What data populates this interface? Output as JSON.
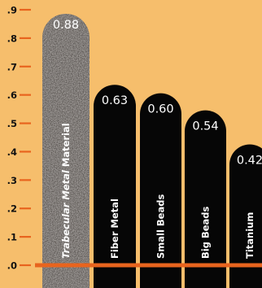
{
  "chart_data": {
    "type": "bar",
    "categories": [
      {
        "italic": "Trabecular Metal",
        "rest": " Material"
      },
      {
        "italic": "",
        "rest": "Fiber Metal"
      },
      {
        "italic": "",
        "rest": "Small Beads"
      },
      {
        "italic": "",
        "rest": "Big Beads"
      },
      {
        "italic": "",
        "rest": "Titanium"
      }
    ],
    "values": [
      0.88,
      0.63,
      0.6,
      0.54,
      0.42
    ],
    "value_labels": [
      "0.88",
      "0.63",
      "0.60",
      "0.54",
      "0.42"
    ],
    "ylim": [
      0,
      0.9
    ],
    "yticks": [
      {
        "value": 0.0,
        "label": ".0"
      },
      {
        "value": 0.1,
        "label": ".1"
      },
      {
        "value": 0.2,
        "label": ".2"
      },
      {
        "value": 0.3,
        "label": ".3"
      },
      {
        "value": 0.4,
        "label": ".4"
      },
      {
        "value": 0.5,
        "label": ".5"
      },
      {
        "value": 0.6,
        "label": ".6"
      },
      {
        "value": 0.7,
        "label": ".7"
      },
      {
        "value": 0.8,
        "label": ".8"
      },
      {
        "value": 0.9,
        "label": ".9"
      }
    ],
    "grid": false,
    "colors": {
      "background": "#f6be6c",
      "axis": "#e8641e",
      "bar_highlight": "#5e5a56",
      "bar": "#060606",
      "label_text": "#ffffff",
      "tick_text": "#111111"
    }
  }
}
